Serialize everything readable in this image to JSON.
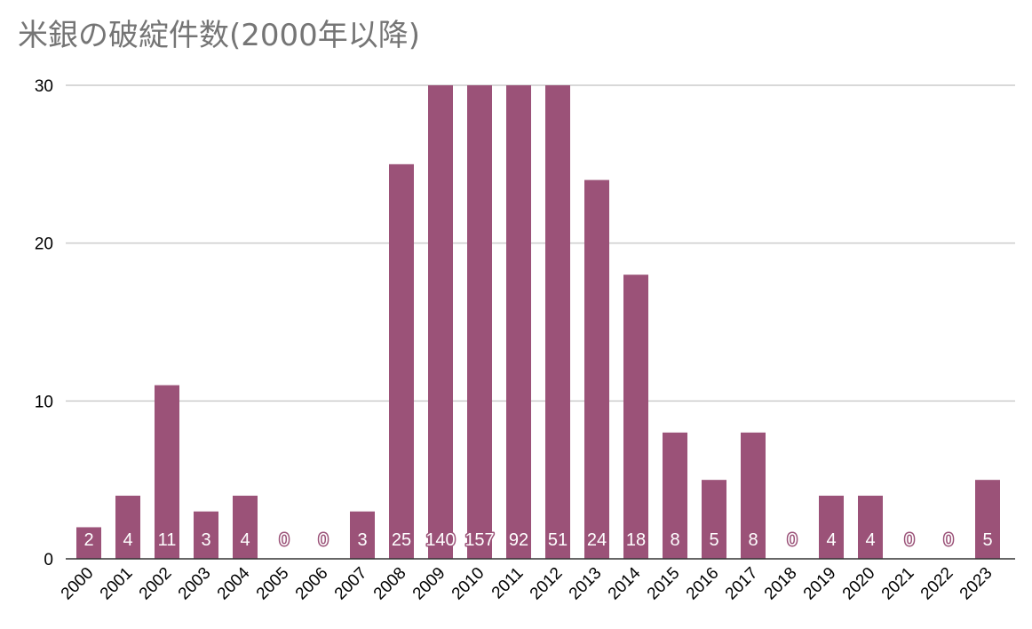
{
  "chart_data": {
    "type": "bar",
    "title": "米銀の破綻件数(2000年以降)",
    "xlabel": "",
    "ylabel": "",
    "ylim": [
      0,
      30
    ],
    "yticks": [
      0,
      10,
      20,
      30
    ],
    "grid": true,
    "legend": "none",
    "bar_color": "#9b5278",
    "categories": [
      "2000",
      "2001",
      "2002",
      "2003",
      "2004",
      "2005",
      "2006",
      "2007",
      "2008",
      "2009",
      "2010",
      "2011",
      "2012",
      "2013",
      "2014",
      "2015",
      "2016",
      "2017",
      "2018",
      "2019",
      "2020",
      "2021",
      "2022",
      "2023"
    ],
    "values": [
      2,
      4,
      11,
      3,
      4,
      0,
      0,
      3,
      25,
      140,
      157,
      92,
      51,
      24,
      18,
      8,
      5,
      8,
      0,
      4,
      4,
      0,
      0,
      5
    ],
    "data_labels": [
      "2",
      "4",
      "11",
      "3",
      "4",
      "0",
      "0",
      "3",
      "25",
      "140",
      "157",
      "92",
      "51",
      "24",
      "18",
      "8",
      "5",
      "8",
      "0",
      "4",
      "4",
      "0",
      "0",
      "5"
    ]
  }
}
